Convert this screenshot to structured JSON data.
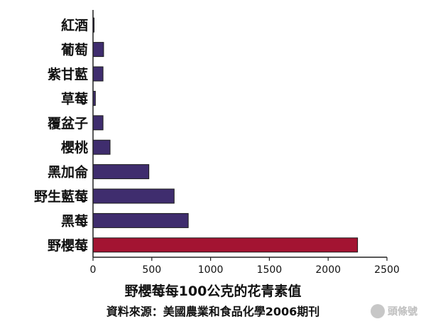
{
  "chart_data": {
    "type": "bar",
    "orientation": "horizontal",
    "title": "野櫻莓每100公克的花青素值",
    "subtitle": "資料來源：美國農業和食品化學2006期刊",
    "xlabel": "",
    "ylabel": "",
    "categories": [
      "紅酒",
      "葡萄",
      "紫甘藍",
      "草莓",
      "覆盆子",
      "櫻桃",
      "黑加侖",
      "野生藍莓",
      "黑莓",
      "野櫻莓"
    ],
    "values": [
      3,
      90,
      85,
      20,
      85,
      145,
      475,
      690,
      810,
      2250
    ],
    "highlight_category": "野櫻莓",
    "xlim": [
      0,
      2500
    ],
    "xticks": [
      "0",
      "500",
      "1000",
      "1500",
      "2000",
      "2500"
    ],
    "grid": false,
    "legend": "none",
    "colors": {
      "bar": "#3f2d6e",
      "highlight": "#a31432",
      "axis": "#222222"
    }
  },
  "watermark": {
    "icon": "toutiao-logo-icon",
    "text": "頭條號"
  }
}
